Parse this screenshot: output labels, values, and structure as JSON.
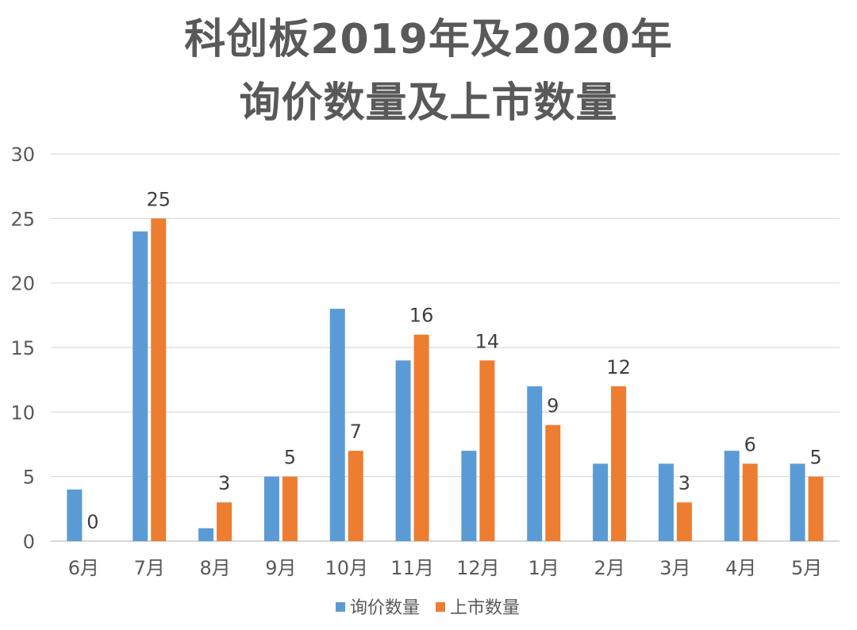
{
  "chart_data": {
    "type": "bar",
    "title_lines": [
      "科创板2019年及2020年",
      "询价数量及上市数量"
    ],
    "xlabel": "",
    "ylabel": "",
    "ylim": [
      0,
      30
    ],
    "yticks": [
      0,
      5,
      10,
      15,
      20,
      25,
      30
    ],
    "grid": true,
    "legend_position": "bottom",
    "categories": [
      "6月",
      "7月",
      "8月",
      "9月",
      "10月",
      "11月",
      "12月",
      "1月",
      "2月",
      "3月",
      "4月",
      "5月"
    ],
    "series": [
      {
        "name": "询价数量",
        "color": "#5B9BD5",
        "values": [
          4,
          24,
          1,
          5,
          18,
          14,
          7,
          12,
          6,
          6,
          7,
          6
        ],
        "show_labels": false
      },
      {
        "name": "上市数量",
        "color": "#ED7D31",
        "values": [
          0,
          25,
          3,
          5,
          7,
          16,
          14,
          9,
          12,
          3,
          6,
          5
        ],
        "show_labels": true
      }
    ]
  }
}
